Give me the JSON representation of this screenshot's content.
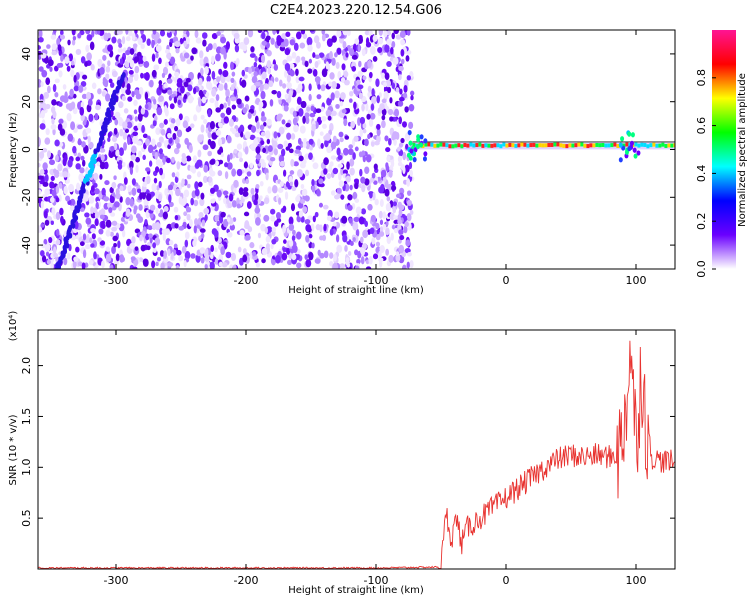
{
  "title": "C2E4.2023.220.12.54.G06",
  "chart_data": [
    {
      "type": "heatmap",
      "xlabel": "Height of straight line (km)",
      "ylabel": "Frequency (Hz)",
      "xlim": [
        -360,
        130
      ],
      "ylim": [
        -50,
        50
      ],
      "x_ticks": [
        -300,
        -200,
        -100,
        0,
        100
      ],
      "y_ticks": [
        -40,
        -20,
        0,
        20,
        40
      ],
      "noise_region_x": [
        -360,
        -72
      ],
      "signal_band_freq_hz": 1.5,
      "colorbar": {
        "label": "Normalized spectral amplitude",
        "range": [
          0,
          1
        ],
        "ticks": [
          "0.0",
          "0.2",
          "0.4",
          "0.6",
          "0.8"
        ],
        "colors": [
          "#ffffff",
          "#6a00ff",
          "#0000ff",
          "#00ffff",
          "#00ff00",
          "#ffff00",
          "#ff0000",
          "#ff1493"
        ]
      }
    },
    {
      "type": "line",
      "xlabel": "Height of straight line (km)",
      "ylabel": "SNR (10 * v/v)",
      "y_scale_label": "(x10⁴)",
      "xlim": [
        -360,
        130
      ],
      "ylim": [
        0,
        2.35
      ],
      "x_ticks": [
        -300,
        -200,
        -100,
        0,
        100
      ],
      "y_ticks": [
        "0.5",
        "1.0",
        "1.5",
        "2.0"
      ],
      "line_color": "#e8322f",
      "series": [
        {
          "x": [
            -360,
            -300,
            -200,
            -100,
            -50,
            -46,
            -42,
            -38,
            -34,
            -30,
            -20,
            -10,
            0,
            10,
            20,
            30,
            40,
            50,
            60,
            70,
            80,
            88,
            92,
            96,
            100,
            104,
            108,
            112,
            120,
            130
          ],
          "y": [
            0.01,
            0.01,
            0.01,
            0.01,
            0.02,
            0.55,
            0.3,
            0.5,
            0.25,
            0.4,
            0.5,
            0.6,
            0.7,
            0.8,
            0.9,
            1.0,
            1.08,
            1.12,
            1.1,
            1.12,
            1.1,
            1.15,
            1.6,
            2.2,
            1.2,
            2.0,
            1.4,
            1.1,
            1.06,
            1.05
          ]
        }
      ]
    }
  ]
}
